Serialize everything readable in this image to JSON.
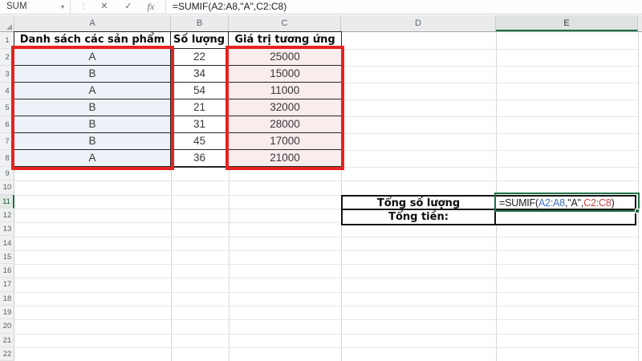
{
  "formula_bar": {
    "name_box_value": "SUM",
    "dropdown_glyph": "▾",
    "grip_glyph": "⋮",
    "cancel_glyph": "✕",
    "enter_glyph": "✓",
    "insert_function_glyph": "fx",
    "formula": "=SUMIF(A2:A8,\"A\",C2:C8)"
  },
  "sheet": {
    "column_headers": [
      "A",
      "B",
      "C",
      "D",
      "E"
    ],
    "row_numbers": [
      "1",
      "2",
      "3",
      "4",
      "5",
      "6",
      "7",
      "8",
      "9",
      "10",
      "11",
      "12",
      "13",
      "14",
      "15",
      "16",
      "17",
      "18",
      "19",
      "20",
      "21",
      "22"
    ],
    "active_column": "E",
    "active_row": "11"
  },
  "table": {
    "header_product": "Danh sách các sản phẩm",
    "header_quantity": "Số lượng",
    "header_value": "Giá trị tương ứng",
    "rows": [
      {
        "product": "A",
        "quantity": "22",
        "value": "25000"
      },
      {
        "product": "B",
        "quantity": "34",
        "value": "15000"
      },
      {
        "product": "A",
        "quantity": "54",
        "value": "11000"
      },
      {
        "product": "B",
        "quantity": "21",
        "value": "32000"
      },
      {
        "product": "B",
        "quantity": "31",
        "value": "28000"
      },
      {
        "product": "B",
        "quantity": "45",
        "value": "17000"
      },
      {
        "product": "A",
        "quantity": "36",
        "value": "21000"
      }
    ]
  },
  "summary": {
    "label_total_quantity": "Tổng số lượng",
    "label_total_money": "Tổng tiền:",
    "formula": {
      "part1": "=SUMIF(",
      "range1": "A2:A8",
      "part2": ",\"A\",",
      "range2": "C2:C8",
      "part3": ")"
    }
  },
  "colors": {
    "excel_green": "#1E7145",
    "highlight_red": "#E52320",
    "reference_blue": "#3E6FC0",
    "reference_red": "#C64545",
    "fill_blue": "#EDF1F8",
    "fill_pink": "#F9ECEC"
  }
}
